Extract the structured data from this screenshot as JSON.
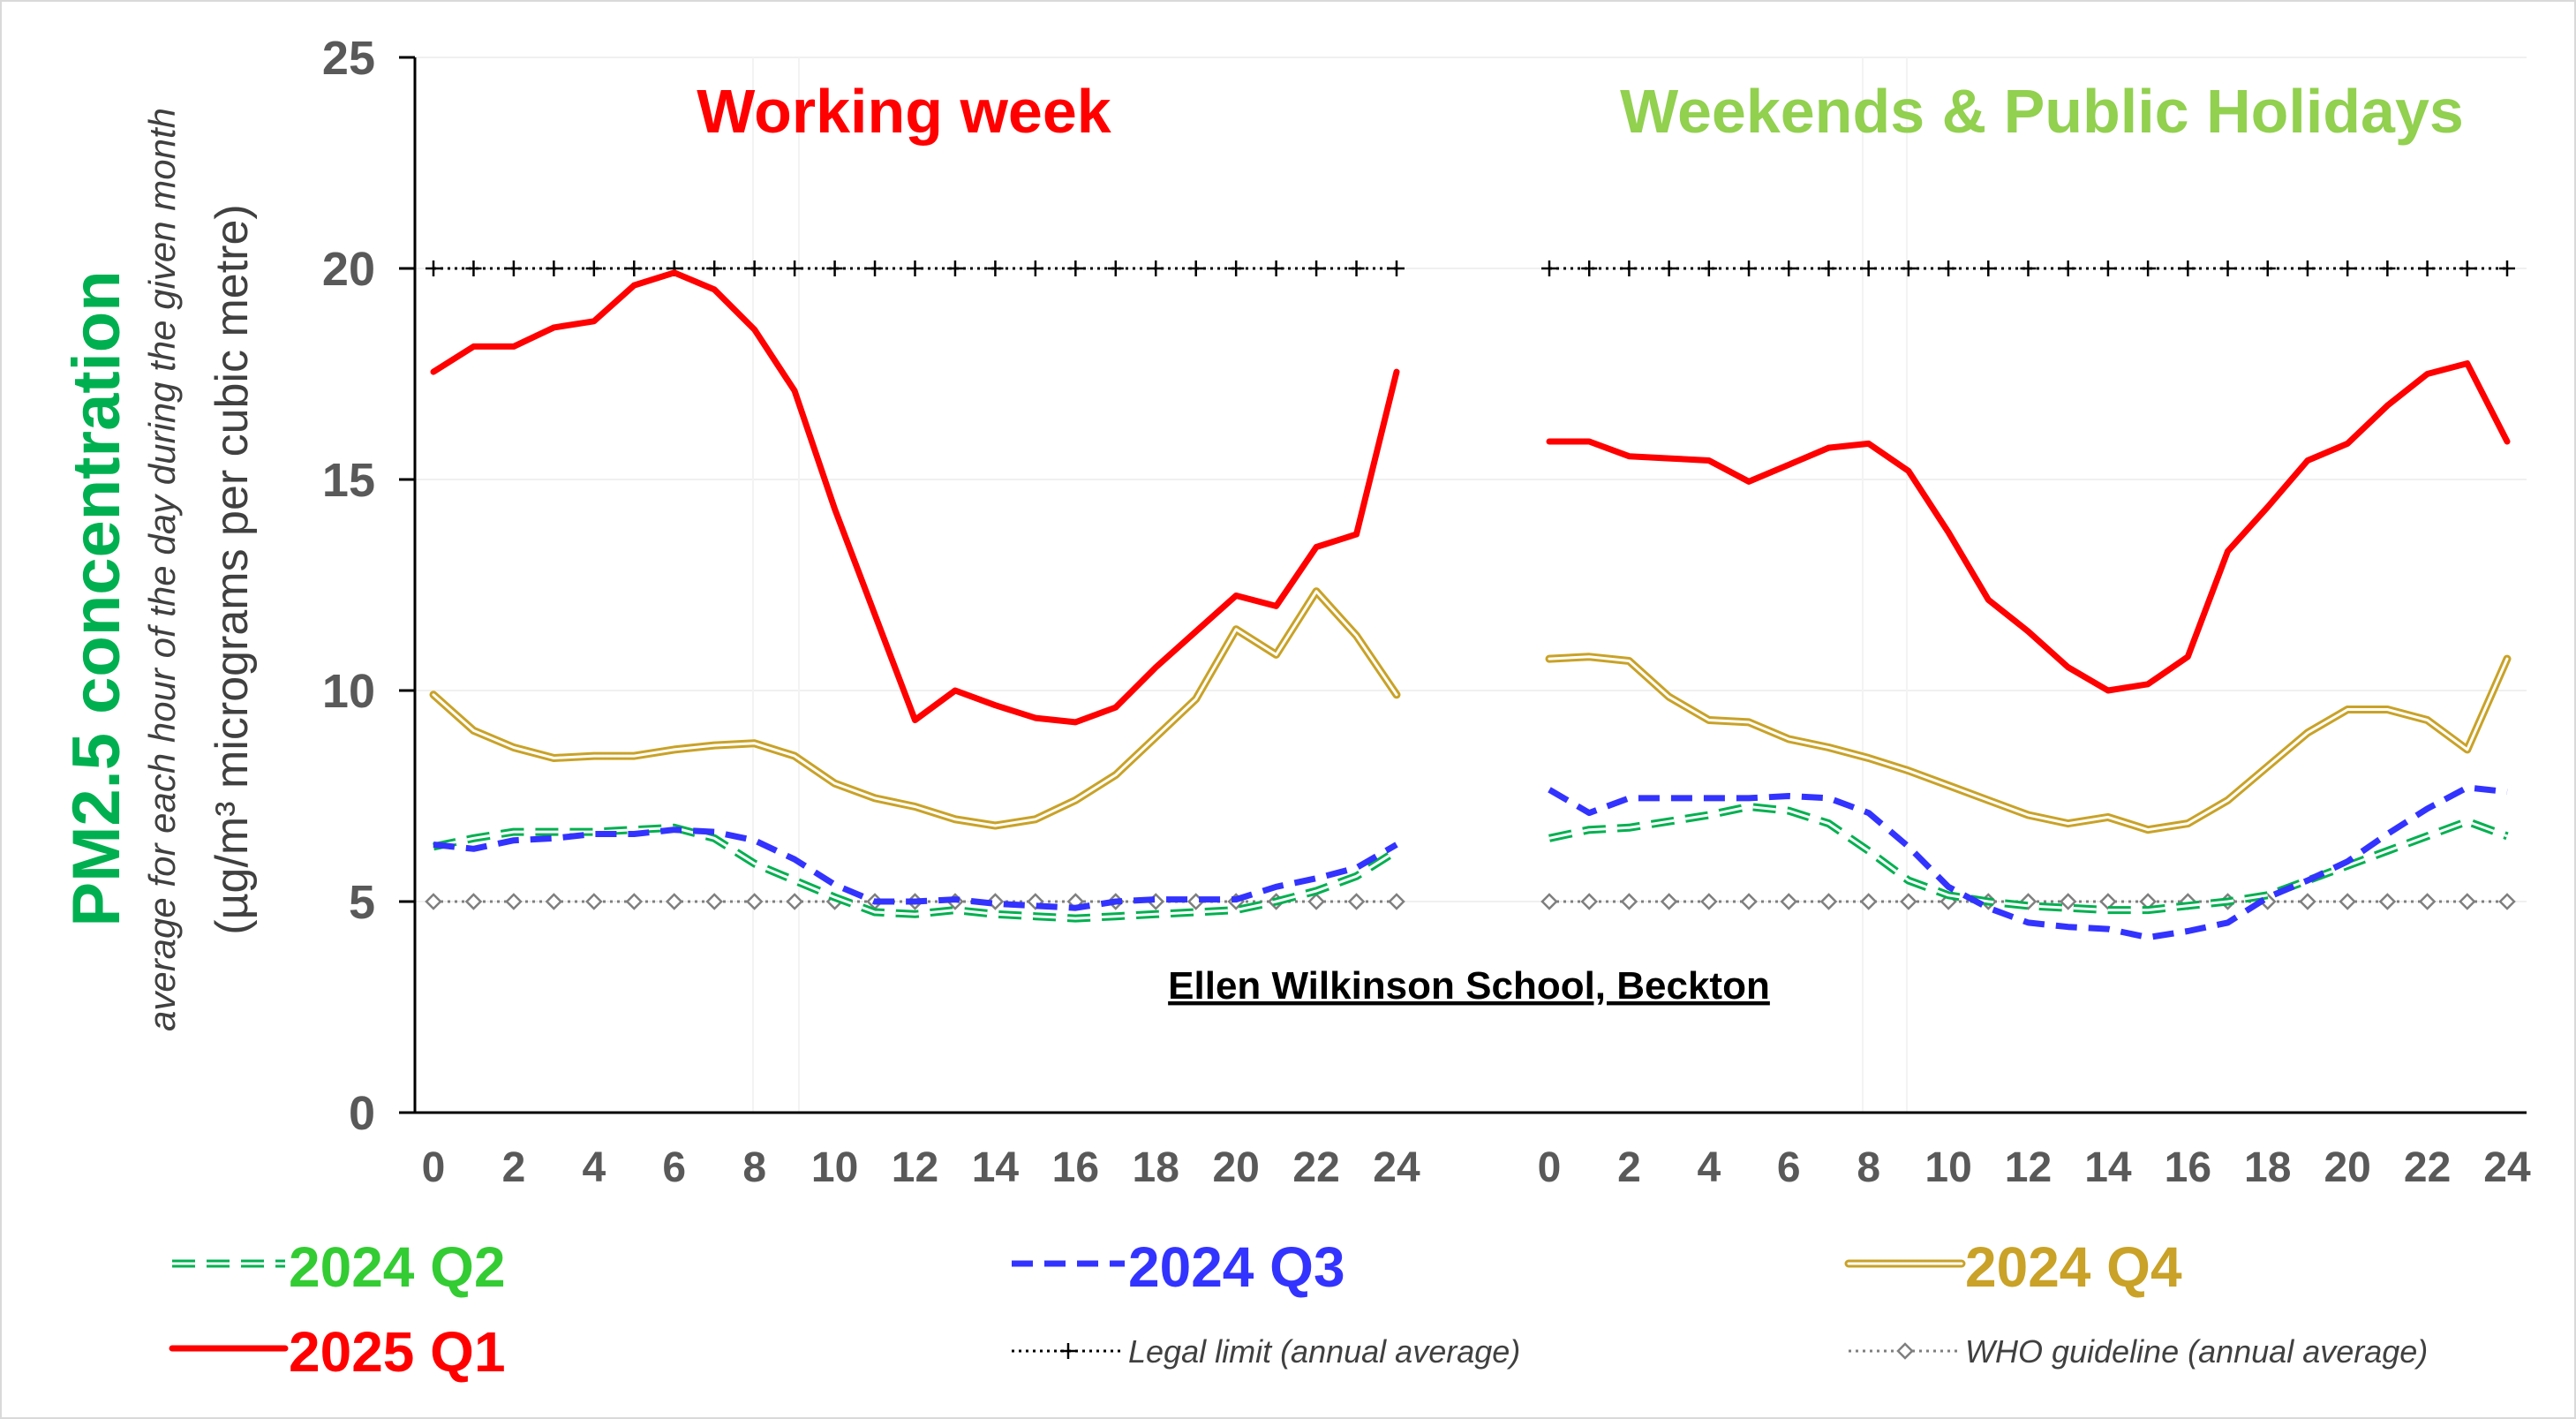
{
  "chart_data": {
    "type": "line",
    "ylabel": "PM2.5 concentration",
    "ylabel_sub": "average for each hour of the day during the given month",
    "ylabel_unit": "(µg/m³ micrograms per cubic metre)",
    "site_label": "Ellen Wilkinson School, Beckton",
    "ylim": [
      0,
      25
    ],
    "yticks": [
      0,
      5,
      10,
      15,
      20,
      25
    ],
    "xlim": [
      0,
      24
    ],
    "xticks": [
      0,
      2,
      4,
      6,
      8,
      10,
      12,
      14,
      16,
      18,
      20,
      22,
      24
    ],
    "hours": [
      0,
      1,
      2,
      3,
      4,
      5,
      6,
      7,
      8,
      9,
      10,
      11,
      12,
      13,
      14,
      15,
      16,
      17,
      18,
      19,
      20,
      21,
      22,
      23,
      24
    ],
    "panels": [
      {
        "title": "Working week",
        "title_color": "#ff0000",
        "series": [
          {
            "name": "2024 Q2",
            "values": [
              6.3,
              6.5,
              6.65,
              6.65,
              6.65,
              6.7,
              6.75,
              6.5,
              5.9,
              5.5,
              5.1,
              4.75,
              4.7,
              4.8,
              4.7,
              4.65,
              4.6,
              4.65,
              4.7,
              4.75,
              4.8,
              5.0,
              5.25,
              5.6,
              6.2
            ]
          },
          {
            "name": "2024 Q3",
            "values": [
              6.35,
              6.25,
              6.45,
              6.5,
              6.6,
              6.6,
              6.7,
              6.65,
              6.45,
              6.0,
              5.4,
              5.0,
              5.0,
              5.05,
              4.95,
              4.9,
              4.85,
              5.0,
              5.05,
              5.05,
              5.05,
              5.35,
              5.55,
              5.8,
              6.35
            ]
          },
          {
            "name": "2024 Q4",
            "values": [
              9.9,
              9.05,
              8.65,
              8.4,
              8.45,
              8.45,
              8.6,
              8.7,
              8.75,
              8.45,
              7.8,
              7.45,
              7.25,
              6.95,
              6.8,
              6.95,
              7.4,
              8.0,
              8.9,
              9.8,
              11.45,
              10.85,
              12.35,
              11.3,
              9.9
            ]
          },
          {
            "name": "2025 Q1",
            "values": [
              17.55,
              18.15,
              18.15,
              18.6,
              18.75,
              19.6,
              19.9,
              19.5,
              18.55,
              17.1,
              14.3,
              11.8,
              9.3,
              10.0,
              9.65,
              9.35,
              9.25,
              9.6,
              10.55,
              11.4,
              12.25,
              12.0,
              13.4,
              13.7,
              17.55
            ]
          }
        ]
      },
      {
        "title": "Weekends & Public Holidays",
        "title_color": "#92d050",
        "series": [
          {
            "name": "2024 Q2",
            "values": [
              6.5,
              6.7,
              6.75,
              6.9,
              7.05,
              7.25,
              7.15,
              6.85,
              6.2,
              5.5,
              5.15,
              5.0,
              4.9,
              4.85,
              4.8,
              4.8,
              4.9,
              5.0,
              5.15,
              5.5,
              5.85,
              6.2,
              6.55,
              6.9,
              6.55
            ]
          },
          {
            "name": "2024 Q3",
            "values": [
              7.65,
              7.1,
              7.45,
              7.45,
              7.45,
              7.45,
              7.5,
              7.45,
              7.1,
              6.3,
              5.35,
              4.85,
              4.5,
              4.4,
              4.35,
              4.15,
              4.3,
              4.5,
              5.1,
              5.5,
              5.95,
              6.6,
              7.2,
              7.7,
              7.6
            ]
          },
          {
            "name": "2024 Q4",
            "values": [
              10.75,
              10.8,
              10.7,
              9.85,
              9.3,
              9.25,
              8.85,
              8.65,
              8.4,
              8.1,
              7.75,
              7.4,
              7.05,
              6.85,
              7.0,
              6.7,
              6.85,
              7.4,
              8.2,
              9.0,
              9.55,
              9.55,
              9.3,
              8.6,
              10.75
            ]
          },
          {
            "name": "2025 Q1",
            "values": [
              15.9,
              15.9,
              15.55,
              15.5,
              15.45,
              14.95,
              15.35,
              15.75,
              15.85,
              15.2,
              13.75,
              12.15,
              11.4,
              10.55,
              10.0,
              10.15,
              10.8,
              13.3,
              14.35,
              15.45,
              15.85,
              16.75,
              17.5,
              17.75,
              15.9
            ]
          }
        ]
      }
    ],
    "reference_lines": [
      {
        "name": "Legal limit (annual average)",
        "value": 20,
        "color": "#000000",
        "marker": "plus"
      },
      {
        "name": "WHO guideline (annual average)",
        "value": 5,
        "color": "#7f7f7f",
        "marker": "diamond"
      }
    ],
    "series_styles": [
      {
        "name": "2024 Q2",
        "color": "#00b050",
        "style": "double-dashed"
      },
      {
        "name": "2024 Q3",
        "color": "#3333ff",
        "style": "dashed"
      },
      {
        "name": "2024 Q4",
        "color": "#c9a227",
        "style": "double"
      },
      {
        "name": "2025 Q1",
        "color": "#ff0000",
        "style": "solid"
      }
    ],
    "legend_text_colors": {
      "2024 Q2": "#33cc33",
      "2024 Q3": "#3333ff",
      "2024 Q4": "#c9a227",
      "2025 Q1": "#ff0000"
    },
    "grid": true,
    "legend_position": "bottom"
  }
}
